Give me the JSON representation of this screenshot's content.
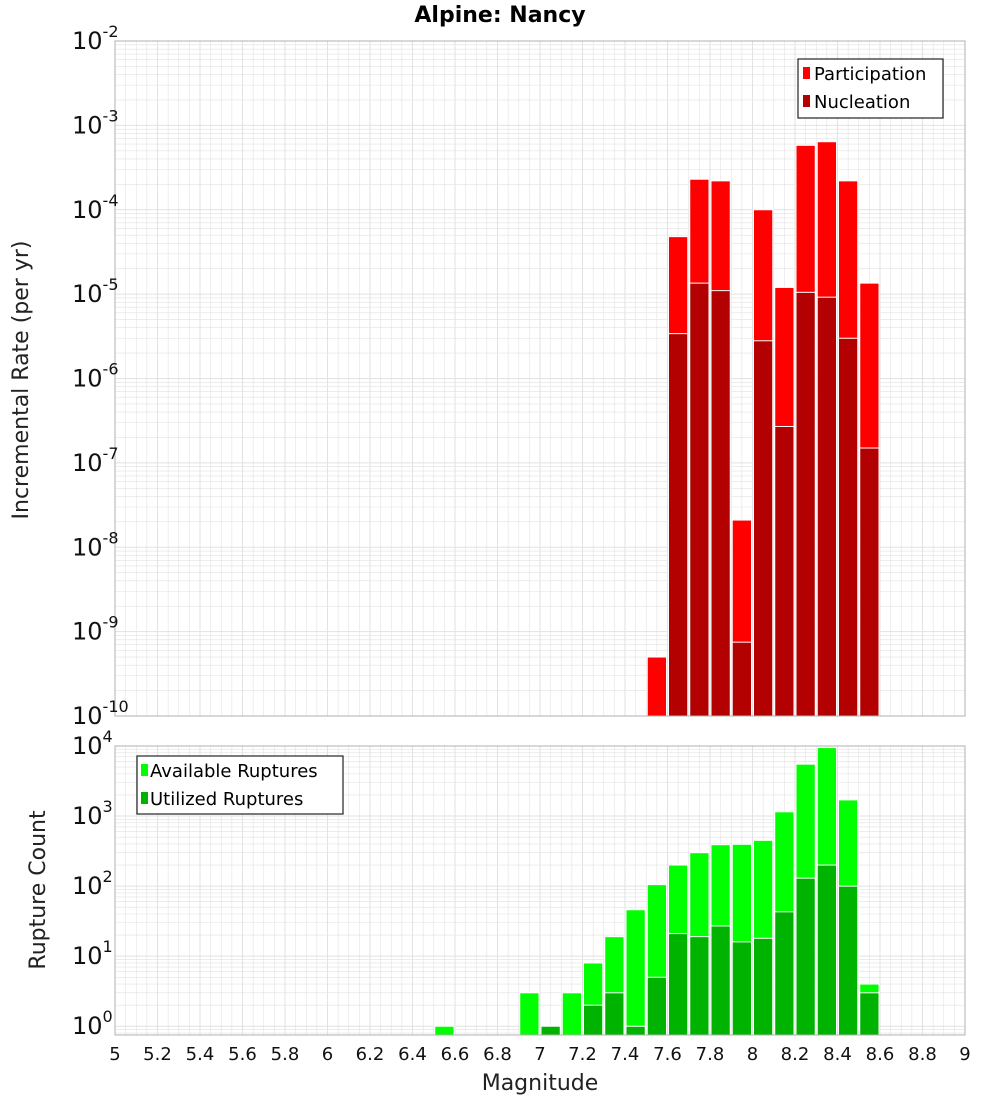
{
  "title": "Alpine: Nancy",
  "xlabel": "Magnitude",
  "colors": {
    "participation": "#ff0000",
    "nucleation": "#b30000",
    "available": "#00ff00",
    "utilized": "#00b300",
    "grid": "#e2e2e2",
    "frame": "#b0b0b0"
  },
  "chart_data": [
    {
      "type": "bar",
      "title": "Alpine: Nancy",
      "xlabel": "Magnitude",
      "ylabel": "Incremental Rate (per yr)",
      "xlim": [
        5,
        9
      ],
      "ylim": [
        1e-10,
        0.01
      ],
      "yscale": "log",
      "grid": true,
      "legend_position": "top-right",
      "bin_width": 0.1,
      "series": [
        {
          "name": "Participation",
          "x": [
            7.55,
            7.65,
            7.75,
            7.85,
            7.95,
            8.05,
            8.15,
            8.25,
            8.35,
            8.45,
            8.55
          ],
          "values": [
            5e-10,
            4.8e-05,
            0.00023,
            0.00022,
            2.1e-08,
            0.0001,
            1.2e-05,
            0.00058,
            0.00064,
            0.00022,
            1.35e-05
          ]
        },
        {
          "name": "Nucleation",
          "x": [
            7.65,
            7.75,
            7.85,
            7.95,
            8.05,
            8.15,
            8.25,
            8.35,
            8.45,
            8.55
          ],
          "values": [
            3.4e-06,
            1.35e-05,
            1.1e-05,
            7.5e-10,
            2.8e-06,
            2.7e-07,
            1.05e-05,
            9.2e-06,
            3e-06,
            1.5e-07
          ]
        }
      ]
    },
    {
      "type": "bar",
      "xlabel": "Magnitude",
      "ylabel": "Rupture Count",
      "xlim": [
        5,
        9
      ],
      "ylim": [
        0.75,
        10000
      ],
      "yscale": "log",
      "grid": true,
      "legend_position": "top-left",
      "bin_width": 0.1,
      "series": [
        {
          "name": "Available Ruptures",
          "x": [
            6.55,
            6.95,
            7.05,
            7.15,
            7.25,
            7.35,
            7.45,
            7.55,
            7.65,
            7.75,
            7.85,
            7.95,
            8.05,
            8.15,
            8.25,
            8.35,
            8.45,
            8.55
          ],
          "values": [
            1,
            3,
            1,
            3,
            8,
            19,
            46,
            105,
            200,
            300,
            390,
            395,
            450,
            1150,
            5500,
            9500,
            1700,
            4
          ]
        },
        {
          "name": "Utilized Ruptures",
          "x": [
            7.05,
            7.25,
            7.35,
            7.45,
            7.55,
            7.65,
            7.75,
            7.85,
            7.95,
            8.05,
            8.15,
            8.25,
            8.35,
            8.45,
            8.55
          ],
          "values": [
            1,
            2,
            3,
            1,
            5,
            21,
            19,
            27,
            16,
            18,
            43,
            130,
            200,
            100,
            3
          ]
        }
      ]
    }
  ],
  "xticks": [
    "5",
    "5.2",
    "5.4",
    "5.6",
    "5.8",
    "6",
    "6.2",
    "6.4",
    "6.6",
    "6.8",
    "7",
    "7.2",
    "7.4",
    "7.6",
    "7.8",
    "8",
    "8.2",
    "8.4",
    "8.6",
    "8.8",
    "9"
  ],
  "top_yticks": [
    {
      "base": "10",
      "exp": "-2"
    },
    {
      "base": "10",
      "exp": "-3"
    },
    {
      "base": "10",
      "exp": "-4"
    },
    {
      "base": "10",
      "exp": "-5"
    },
    {
      "base": "10",
      "exp": "-6"
    },
    {
      "base": "10",
      "exp": "-7"
    },
    {
      "base": "10",
      "exp": "-8"
    },
    {
      "base": "10",
      "exp": "-9"
    },
    {
      "base": "10",
      "exp": "-10"
    }
  ],
  "bottom_yticks": [
    {
      "base": "10",
      "exp": "4"
    },
    {
      "base": "10",
      "exp": "3"
    },
    {
      "base": "10",
      "exp": "2"
    },
    {
      "base": "10",
      "exp": "1"
    },
    {
      "base": "10",
      "exp": "0"
    }
  ]
}
